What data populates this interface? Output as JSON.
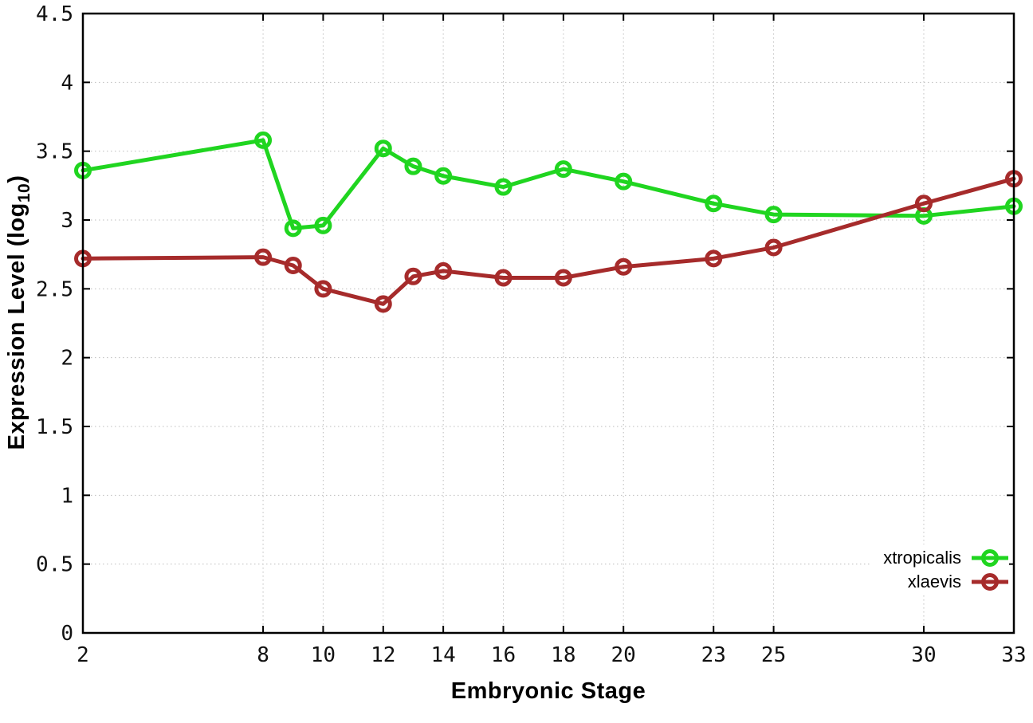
{
  "page": {
    "background": "#ffffff"
  },
  "chart_data": {
    "type": "line",
    "title": "",
    "xlabel": "Embryonic Stage",
    "ylabel": "Expression Level (log10)",
    "ylabel_parts": {
      "main": "Expression Level (log",
      "sub": "10",
      "end": ")"
    },
    "xlim": [
      2,
      33
    ],
    "ylim": [
      0,
      4.5
    ],
    "xticks": [
      2,
      8,
      10,
      12,
      14,
      16,
      18,
      20,
      23,
      25,
      30,
      33
    ],
    "yticks": [
      0,
      0.5,
      1,
      1.5,
      2,
      2.5,
      3,
      3.5,
      4,
      4.5
    ],
    "grid": true,
    "legend_position": "bottom-right",
    "axis_color": "#000000",
    "grid_color": "#bdbdbd",
    "tick_label_color": "#111111",
    "x": [
      2,
      8,
      9,
      10,
      12,
      13,
      14,
      16,
      18,
      20,
      23,
      25,
      30,
      33
    ],
    "series": [
      {
        "name": "xtropicalis",
        "color": "#20d520",
        "marker": "open-circle",
        "values": [
          3.36,
          3.58,
          2.94,
          2.96,
          3.52,
          3.39,
          3.32,
          3.24,
          3.37,
          3.28,
          3.12,
          3.04,
          3.03,
          3.1
        ]
      },
      {
        "name": "xlaevis",
        "color": "#a62b2b",
        "marker": "open-circle",
        "values": [
          2.72,
          2.73,
          2.67,
          2.5,
          2.39,
          2.59,
          2.63,
          2.58,
          2.58,
          2.66,
          2.72,
          2.8,
          3.12,
          3.3
        ]
      }
    ]
  },
  "legend": {
    "items": [
      {
        "label": "xtropicalis"
      },
      {
        "label": "xlaevis"
      }
    ]
  }
}
